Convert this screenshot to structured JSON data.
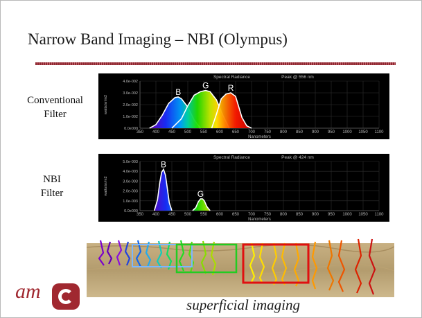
{
  "slide": {
    "title": "Narrow Band Imaging – NBI (Olympus)",
    "caption": "superficial imaging",
    "logo_text": "am"
  },
  "labels": {
    "conventional_line1": "Conventional",
    "conventional_line2": "Filter",
    "nbi_line1": "NBI",
    "nbi_line2": "Filter"
  },
  "colors": {
    "title_rule": "#a83038",
    "plot_bg": "#000000",
    "tick_text": "#bbbbbb",
    "red": "#ff1a00",
    "green": "#33dd00",
    "blue": "#3344ff",
    "violet": "#7a00cc",
    "logo": "#a02830"
  },
  "chart_data": [
    {
      "type": "area",
      "title": "Spectral Radiance",
      "subtitle": "Peak @ 556 nm",
      "xlabel": "Nanometers",
      "ylabel": "watts/sr/m2",
      "x_ticks": [
        350,
        400,
        450,
        500,
        550,
        600,
        650,
        700,
        750,
        800,
        850,
        900,
        950,
        1000,
        1050,
        1100
      ],
      "y_ticks": [
        "0.0e000",
        "1.0e-002",
        "2.0e-002",
        "3.0e-002",
        "4.0e-002"
      ],
      "xlim": [
        350,
        1100
      ],
      "ylim": [
        0,
        0.04
      ],
      "grid": true,
      "series": [
        {
          "name": "B",
          "color": "#3344ff",
          "x": [
            380,
            400,
            420,
            440,
            460,
            470,
            480,
            500,
            520,
            540
          ],
          "y": [
            0,
            0.003,
            0.011,
            0.021,
            0.026,
            0.0265,
            0.025,
            0.018,
            0.007,
            0
          ]
        },
        {
          "name": "G",
          "color": "#33dd00",
          "x": [
            450,
            480,
            500,
            520,
            540,
            556,
            570,
            590,
            610,
            630
          ],
          "y": [
            0,
            0.008,
            0.019,
            0.028,
            0.031,
            0.032,
            0.031,
            0.024,
            0.011,
            0
          ]
        },
        {
          "name": "R",
          "color": "#ff1a00",
          "x": [
            575,
            590,
            605,
            620,
            635,
            650,
            660,
            670,
            685,
            700
          ],
          "y": [
            0,
            0.012,
            0.025,
            0.029,
            0.03,
            0.027,
            0.018,
            0.009,
            0.002,
            0
          ]
        }
      ]
    },
    {
      "type": "area",
      "title": "Spectral Radiance",
      "subtitle": "Peak @ 424 nm",
      "xlabel": "Nanometers",
      "ylabel": "watts/sr/m2",
      "x_ticks": [
        350,
        400,
        450,
        500,
        550,
        600,
        650,
        700,
        750,
        800,
        850,
        900,
        950,
        1000,
        1050,
        1100
      ],
      "y_ticks": [
        "0.0e000",
        "1.0e-003",
        "2.0e-003",
        "3.0e-003",
        "4.0e-003",
        "5.0e-003"
      ],
      "xlim": [
        350,
        1100
      ],
      "ylim": [
        0,
        0.005
      ],
      "grid": true,
      "series": [
        {
          "name": "B",
          "color": "#5a1aff",
          "x": [
            395,
            405,
            412,
            418,
            424,
            430,
            436,
            442,
            450
          ],
          "y": [
            0,
            0.0011,
            0.0028,
            0.0039,
            0.0042,
            0.0036,
            0.0022,
            0.0008,
            0
          ]
        },
        {
          "name": "G",
          "color": "#33dd00",
          "x": [
            515,
            525,
            533,
            540,
            546,
            552,
            560,
            570
          ],
          "y": [
            0,
            0.0003,
            0.0009,
            0.0012,
            0.0012,
            0.001,
            0.0004,
            0
          ]
        }
      ]
    }
  ]
}
